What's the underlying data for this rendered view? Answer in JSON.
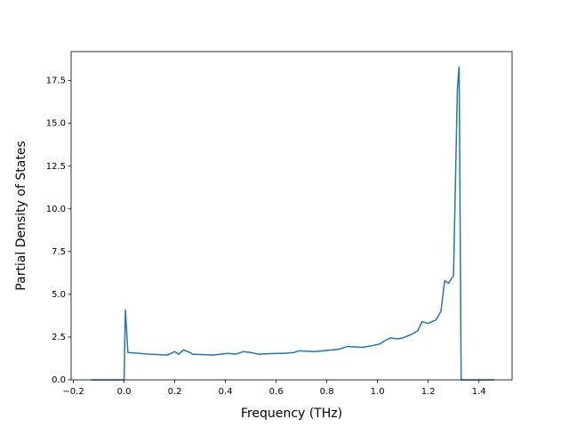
{
  "chart_data": {
    "type": "line",
    "x_label": "Frequency (THz)",
    "y_label": "Partial Density of States",
    "series": [
      {
        "color": "#1f77b4",
        "x": [
          -0.13,
          0.0,
          0.005,
          0.015,
          0.1,
          0.17,
          0.2,
          0.215,
          0.235,
          0.26,
          0.27,
          0.35,
          0.41,
          0.44,
          0.47,
          0.5,
          0.53,
          0.6,
          0.63,
          0.67,
          0.69,
          0.75,
          0.82,
          0.85,
          0.88,
          0.94,
          0.98,
          1.01,
          1.03,
          1.05,
          1.08,
          1.1,
          1.14,
          1.16,
          1.175,
          1.2,
          1.23,
          1.25,
          1.265,
          1.28,
          1.3,
          1.315,
          1.322,
          1.33,
          1.46
        ],
        "values": [
          0,
          0,
          4.1,
          1.6,
          1.5,
          1.45,
          1.65,
          1.5,
          1.75,
          1.6,
          1.5,
          1.45,
          1.55,
          1.5,
          1.65,
          1.6,
          1.5,
          1.55,
          1.55,
          1.6,
          1.7,
          1.65,
          1.75,
          1.8,
          1.95,
          1.9,
          2.0,
          2.1,
          2.3,
          2.45,
          2.4,
          2.45,
          2.7,
          2.9,
          3.4,
          3.3,
          3.5,
          4.0,
          5.8,
          5.65,
          6.1,
          17.0,
          18.3,
          0,
          0
        ]
      }
    ],
    "xlim": [
      -0.209,
      1.531
    ],
    "ylim": [
      0,
      19.2
    ],
    "xticks": [
      {
        "value": -0.2,
        "label": "−0.2"
      },
      {
        "value": 0.0,
        "label": "0.0"
      },
      0.2,
      0.4,
      0.6,
      0.8,
      {
        "value": 1.0,
        "label": "1.0"
      },
      1.2,
      1.4
    ],
    "yticks": [
      {
        "value": 0.0,
        "label": "0.0"
      },
      2.5,
      {
        "value": 5.0,
        "label": "5.0"
      },
      7.5,
      {
        "value": 10.0,
        "label": "10.0"
      },
      12.5,
      {
        "value": 15.0,
        "label": "15.0"
      },
      17.5
    ]
  }
}
